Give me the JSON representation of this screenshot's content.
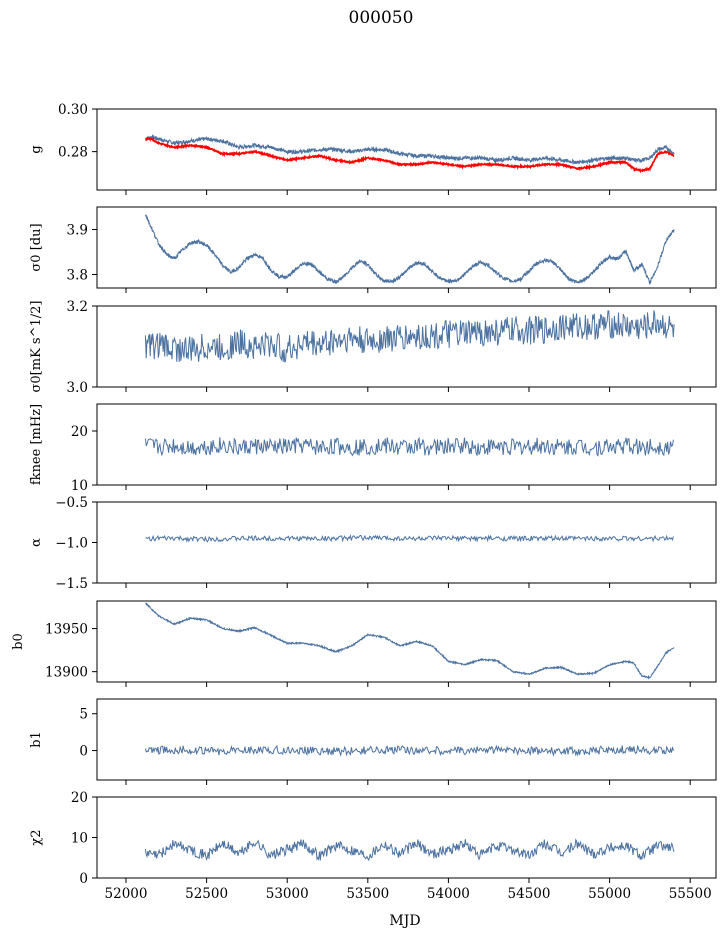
{
  "title": "000050",
  "xlabel": "MJD",
  "x_ticks": [
    52000,
    52500,
    53000,
    53500,
    54000,
    54500,
    55000,
    55500
  ],
  "xlim": [
    51820,
    55660
  ],
  "chart_data": [
    {
      "type": "line",
      "ylabel": "g",
      "ylim": [
        0.262,
        0.3
      ],
      "yticks": [
        0.28,
        0.3
      ],
      "ytick_labels": [
        "0.28",
        "0.30"
      ],
      "series": [
        {
          "color": "#4c72a0",
          "x": [
            52120,
            52160,
            52200,
            52300,
            52400,
            52500,
            52600,
            52700,
            52800,
            52900,
            53000,
            53100,
            53200,
            53300,
            53400,
            53500,
            53600,
            53700,
            53800,
            53900,
            54000,
            54100,
            54200,
            54300,
            54400,
            54500,
            54600,
            54700,
            54800,
            54900,
            55000,
            55100,
            55150,
            55200,
            55250,
            55300,
            55350,
            55400
          ],
          "y": [
            0.286,
            0.287,
            0.286,
            0.284,
            0.285,
            0.286,
            0.285,
            0.282,
            0.283,
            0.282,
            0.28,
            0.28,
            0.281,
            0.281,
            0.28,
            0.281,
            0.281,
            0.279,
            0.278,
            0.278,
            0.277,
            0.277,
            0.277,
            0.276,
            0.277,
            0.276,
            0.277,
            0.276,
            0.275,
            0.276,
            0.277,
            0.277,
            0.276,
            0.276,
            0.277,
            0.281,
            0.282,
            0.279
          ]
        },
        {
          "color": "#ff0000",
          "x": [
            52120,
            52160,
            52200,
            52300,
            52400,
            52500,
            52600,
            52700,
            52800,
            52900,
            53000,
            53100,
            53200,
            53300,
            53400,
            53500,
            53600,
            53700,
            53800,
            53900,
            54000,
            54100,
            54200,
            54300,
            54400,
            54500,
            54600,
            54700,
            54800,
            54900,
            55000,
            55100,
            55150,
            55200,
            55250,
            55300,
            55350,
            55400
          ],
          "y": [
            0.286,
            0.286,
            0.284,
            0.282,
            0.283,
            0.282,
            0.279,
            0.279,
            0.28,
            0.278,
            0.276,
            0.277,
            0.278,
            0.276,
            0.275,
            0.277,
            0.276,
            0.274,
            0.274,
            0.275,
            0.274,
            0.273,
            0.274,
            0.274,
            0.273,
            0.273,
            0.274,
            0.274,
            0.272,
            0.273,
            0.275,
            0.275,
            0.272,
            0.271,
            0.272,
            0.279,
            0.28,
            0.278
          ]
        }
      ]
    },
    {
      "type": "line",
      "ylabel": "σ0 [du]",
      "ylim": [
        3.77,
        3.95
      ],
      "yticks": [
        3.8,
        3.9
      ],
      "ytick_labels": [
        "3.8",
        "3.9"
      ],
      "series": [
        {
          "color": "#4c72a0",
          "x": [
            52120,
            52150,
            52200,
            52250,
            52300,
            52350,
            52400,
            52450,
            52500,
            52550,
            52600,
            52650,
            52700,
            52750,
            52800,
            52850,
            52900,
            52950,
            53000,
            53050,
            53100,
            53150,
            53200,
            53250,
            53300,
            53350,
            53400,
            53450,
            53500,
            53550,
            53600,
            53650,
            53700,
            53750,
            53800,
            53850,
            53900,
            53950,
            54000,
            54050,
            54100,
            54150,
            54200,
            54250,
            54300,
            54350,
            54400,
            54450,
            54500,
            54550,
            54600,
            54650,
            54700,
            54750,
            54800,
            54850,
            54900,
            54950,
            55000,
            55050,
            55100,
            55150,
            55200,
            55250,
            55300,
            55350,
            55400
          ],
          "y": [
            3.935,
            3.91,
            3.87,
            3.845,
            3.835,
            3.855,
            3.87,
            3.873,
            3.865,
            3.845,
            3.82,
            3.805,
            3.815,
            3.835,
            3.845,
            3.835,
            3.81,
            3.795,
            3.795,
            3.81,
            3.825,
            3.823,
            3.805,
            3.79,
            3.783,
            3.795,
            3.815,
            3.83,
            3.822,
            3.8,
            3.786,
            3.785,
            3.794,
            3.813,
            3.826,
            3.824,
            3.806,
            3.792,
            3.785,
            3.787,
            3.8,
            3.818,
            3.827,
            3.82,
            3.803,
            3.79,
            3.785,
            3.79,
            3.808,
            3.825,
            3.832,
            3.828,
            3.808,
            3.79,
            3.783,
            3.79,
            3.806,
            3.825,
            3.84,
            3.835,
            3.852,
            3.81,
            3.822,
            3.782,
            3.82,
            3.875,
            3.9
          ]
        }
      ]
    },
    {
      "type": "line",
      "ylabel": "σ0[mK s^1/2]",
      "ylim": [
        3.0,
        3.2
      ],
      "yticks": [
        3.0,
        3.2
      ],
      "ytick_labels": [
        "3.0",
        "3.2"
      ],
      "series": [
        {
          "color": "#4c72a0",
          "x": [
            52120,
            52200,
            52300,
            52400,
            52500,
            52600,
            52700,
            52800,
            52900,
            53000,
            53100,
            53200,
            53300,
            53400,
            53500,
            53600,
            53700,
            53800,
            53900,
            54000,
            54100,
            54200,
            54300,
            54400,
            54500,
            54600,
            54700,
            54800,
            54900,
            55000,
            55100,
            55200,
            55300,
            55400
          ],
          "y": [
            3.1,
            3.105,
            3.095,
            3.09,
            3.1,
            3.095,
            3.11,
            3.1,
            3.105,
            3.09,
            3.11,
            3.105,
            3.115,
            3.12,
            3.11,
            3.12,
            3.12,
            3.125,
            3.125,
            3.13,
            3.13,
            3.135,
            3.135,
            3.14,
            3.14,
            3.14,
            3.15,
            3.15,
            3.15,
            3.155,
            3.15,
            3.145,
            3.16,
            3.14
          ]
        }
      ]
    },
    {
      "type": "line",
      "ylabel": "fknee [mHz]",
      "ylim": [
        10,
        25
      ],
      "yticks": [
        10,
        20
      ],
      "ytick_labels": [
        "10",
        "20"
      ],
      "series": [
        {
          "color": "#4c72a0",
          "x": [
            52120,
            52200,
            52300,
            52400,
            52500,
            52600,
            52700,
            52800,
            52900,
            53000,
            53100,
            53200,
            53300,
            53400,
            53500,
            53600,
            53700,
            53800,
            53900,
            54000,
            54100,
            54200,
            54300,
            54400,
            54500,
            54600,
            54700,
            54800,
            54900,
            55000,
            55100,
            55200,
            55300,
            55400
          ],
          "y": [
            17.2,
            17.0,
            17.3,
            16.9,
            17.1,
            17.4,
            16.8,
            17.2,
            17.0,
            17.1,
            17.3,
            16.9,
            17.2,
            17.0,
            17.1,
            17.3,
            16.9,
            17.2,
            17.0,
            17.1,
            17.4,
            16.8,
            17.2,
            17.0,
            17.1,
            17.3,
            16.9,
            17.2,
            17.0,
            17.1,
            17.3,
            16.9,
            17.2,
            17.0
          ]
        }
      ]
    },
    {
      "type": "line",
      "ylabel": "α",
      "ylim": [
        -1.5,
        -0.5
      ],
      "yticks": [
        -1.5,
        -1.0,
        -0.5
      ],
      "ytick_labels": [
        "−1.5",
        "−1.0",
        "−0.5"
      ],
      "series": [
        {
          "color": "#4c72a0",
          "x": [
            52120,
            52300,
            52500,
            52700,
            52900,
            53100,
            53300,
            53500,
            53700,
            53900,
            54100,
            54300,
            54500,
            54700,
            54900,
            55100,
            55300,
            55400
          ],
          "y": [
            -0.95,
            -0.95,
            -0.96,
            -0.95,
            -0.95,
            -0.95,
            -0.95,
            -0.94,
            -0.95,
            -0.95,
            -0.95,
            -0.95,
            -0.95,
            -0.95,
            -0.95,
            -0.95,
            -0.95,
            -0.95
          ]
        }
      ]
    },
    {
      "type": "line",
      "ylabel": "b0",
      "ylim": [
        13888,
        13982
      ],
      "yticks": [
        13900,
        13950
      ],
      "ytick_labels": [
        "13900",
        "13950"
      ],
      "series": [
        {
          "color": "#4c72a0",
          "x": [
            52120,
            52200,
            52300,
            52400,
            52500,
            52600,
            52700,
            52800,
            52900,
            53000,
            53100,
            53200,
            53300,
            53400,
            53500,
            53600,
            53700,
            53800,
            53900,
            54000,
            54100,
            54200,
            54300,
            54400,
            54500,
            54600,
            54700,
            54800,
            54900,
            55000,
            55100,
            55150,
            55200,
            55250,
            55300,
            55350,
            55400
          ],
          "y": [
            13980,
            13965,
            13955,
            13962,
            13960,
            13950,
            13947,
            13951,
            13942,
            13933,
            13933,
            13930,
            13923,
            13930,
            13943,
            13940,
            13930,
            13935,
            13930,
            13912,
            13908,
            13914,
            13913,
            13900,
            13897,
            13904,
            13905,
            13897,
            13898,
            13908,
            13912,
            13910,
            13895,
            13893,
            13907,
            13922,
            13928
          ]
        }
      ]
    },
    {
      "type": "line",
      "ylabel": "b1",
      "ylim": [
        -4,
        7
      ],
      "yticks": [
        0,
        5
      ],
      "ytick_labels": [
        "0",
        "5"
      ],
      "series": [
        {
          "color": "#4c72a0",
          "x": [
            52120,
            52300,
            52500,
            52700,
            52900,
            53100,
            53300,
            53500,
            53700,
            53900,
            54100,
            54300,
            54500,
            54700,
            54900,
            55100,
            55300,
            55400
          ],
          "y": [
            0,
            0.1,
            -0.1,
            0,
            0.1,
            0,
            -0.1,
            0,
            0.1,
            0,
            0,
            0.1,
            0,
            -0.1,
            0,
            0.2,
            0,
            0
          ]
        }
      ]
    },
    {
      "type": "line",
      "ylabel": "χ2",
      "ylim": [
        0,
        20
      ],
      "yticks": [
        0,
        10,
        20
      ],
      "ytick_labels": [
        "0",
        "10",
        "20"
      ],
      "series": [
        {
          "color": "#4c72a0",
          "x": [
            52120,
            52200,
            52300,
            52400,
            52500,
            52600,
            52700,
            52800,
            52900,
            53000,
            53100,
            53200,
            53300,
            53400,
            53500,
            53600,
            53700,
            53800,
            53900,
            54000,
            54100,
            54200,
            54300,
            54400,
            54500,
            54600,
            54700,
            54800,
            54900,
            55000,
            55100,
            55200,
            55300,
            55400
          ],
          "y": [
            6,
            5.5,
            8.5,
            7,
            5.5,
            8.5,
            6,
            9,
            5.5,
            7,
            8.5,
            5.5,
            8,
            7,
            5.5,
            8.5,
            6,
            8.5,
            6,
            7,
            8.5,
            5.5,
            8,
            7,
            5.5,
            8.5,
            6,
            8.5,
            6,
            7.5,
            8,
            5.5,
            8,
            7.5
          ]
        }
      ]
    }
  ]
}
